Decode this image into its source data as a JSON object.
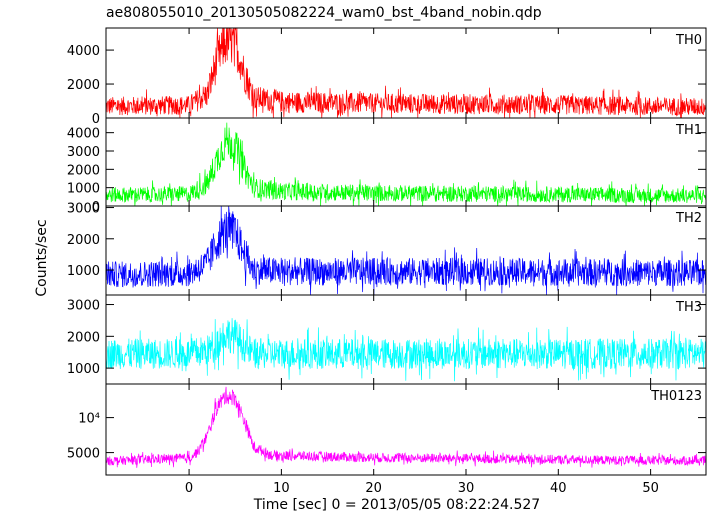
{
  "chart_data": {
    "type": "line",
    "title": "ae808055010_20130505082224_wam0_bst_4band_nobin.qdp",
    "xlabel": "Time [sec] 0 = 2013/05/05 08:22:24.527",
    "ylabel": "Counts/sec",
    "xlim": [
      -9,
      56
    ],
    "x_ticks": [
      "0",
      "10",
      "20",
      "30",
      "40",
      "50"
    ],
    "x_tick_values": [
      0,
      10,
      20,
      30,
      40,
      50
    ],
    "grid": false,
    "panels": [
      {
        "name": "TH0",
        "color": "#ff0000",
        "ylim": [
          0,
          5300
        ],
        "y_ticks": [
          "0",
          "2000",
          "4000"
        ],
        "y_tick_values": [
          0,
          2000,
          4000
        ],
        "profile": [
          [
            -9,
            700
          ],
          [
            0,
            750
          ],
          [
            2,
            1400
          ],
          [
            3,
            3400
          ],
          [
            4,
            4500
          ],
          [
            5,
            4400
          ],
          [
            6,
            2600
          ],
          [
            7,
            1200
          ],
          [
            10,
            950
          ],
          [
            20,
            850
          ],
          [
            35,
            800
          ],
          [
            56,
            650
          ]
        ],
        "noise": 550
      },
      {
        "name": "TH1",
        "color": "#00ff00",
        "ylim": [
          0,
          4800
        ],
        "y_ticks": [
          "0",
          "1000",
          "2000",
          "3000",
          "4000"
        ],
        "y_tick_values": [
          0,
          1000,
          2000,
          3000,
          4000
        ],
        "profile": [
          [
            -9,
            600
          ],
          [
            0,
            650
          ],
          [
            2,
            1200
          ],
          [
            3,
            2500
          ],
          [
            4,
            3600
          ],
          [
            5,
            3300
          ],
          [
            6,
            2000
          ],
          [
            7,
            1000
          ],
          [
            10,
            800
          ],
          [
            20,
            700
          ],
          [
            35,
            650
          ],
          [
            56,
            550
          ]
        ],
        "noise": 420
      },
      {
        "name": "TH2",
        "color": "#0000ff",
        "ylim": [
          200,
          3050
        ],
        "y_ticks": [
          "1000",
          "2000",
          "3000"
        ],
        "y_tick_values": [
          1000,
          2000,
          3000
        ],
        "profile": [
          [
            -9,
            850
          ],
          [
            0,
            900
          ],
          [
            2,
            1200
          ],
          [
            3,
            1900
          ],
          [
            4,
            2300
          ],
          [
            5,
            2200
          ],
          [
            6,
            1500
          ],
          [
            7,
            1000
          ],
          [
            10,
            950
          ],
          [
            30,
            950
          ],
          [
            56,
            900
          ]
        ],
        "noise": 420
      },
      {
        "name": "TH3",
        "color": "#00ffff",
        "ylim": [
          500,
          3300
        ],
        "y_ticks": [
          "1000",
          "2000",
          "3000"
        ],
        "y_tick_values": [
          1000,
          2000,
          3000
        ],
        "profile": [
          [
            -9,
            1450
          ],
          [
            0,
            1450
          ],
          [
            2,
            1550
          ],
          [
            3,
            1800
          ],
          [
            4,
            2100
          ],
          [
            5,
            2000
          ],
          [
            6,
            1700
          ],
          [
            7,
            1450
          ],
          [
            56,
            1450
          ]
        ],
        "noise": 480
      },
      {
        "name": "TH0123",
        "color": "#ff00ff",
        "ylim": [
          1800,
          14800
        ],
        "y_ticks": [
          "5000",
          "10⁴"
        ],
        "y_tick_values": [
          5000,
          10000
        ],
        "profile": [
          [
            -9,
            3800
          ],
          [
            0,
            4200
          ],
          [
            1,
            5200
          ],
          [
            2,
            7500
          ],
          [
            3,
            11500
          ],
          [
            4,
            13200
          ],
          [
            5,
            12800
          ],
          [
            6,
            9500
          ],
          [
            7,
            5800
          ],
          [
            9,
            4600
          ],
          [
            20,
            4300
          ],
          [
            40,
            4000
          ],
          [
            56,
            3800
          ]
        ],
        "noise": 650
      }
    ]
  }
}
